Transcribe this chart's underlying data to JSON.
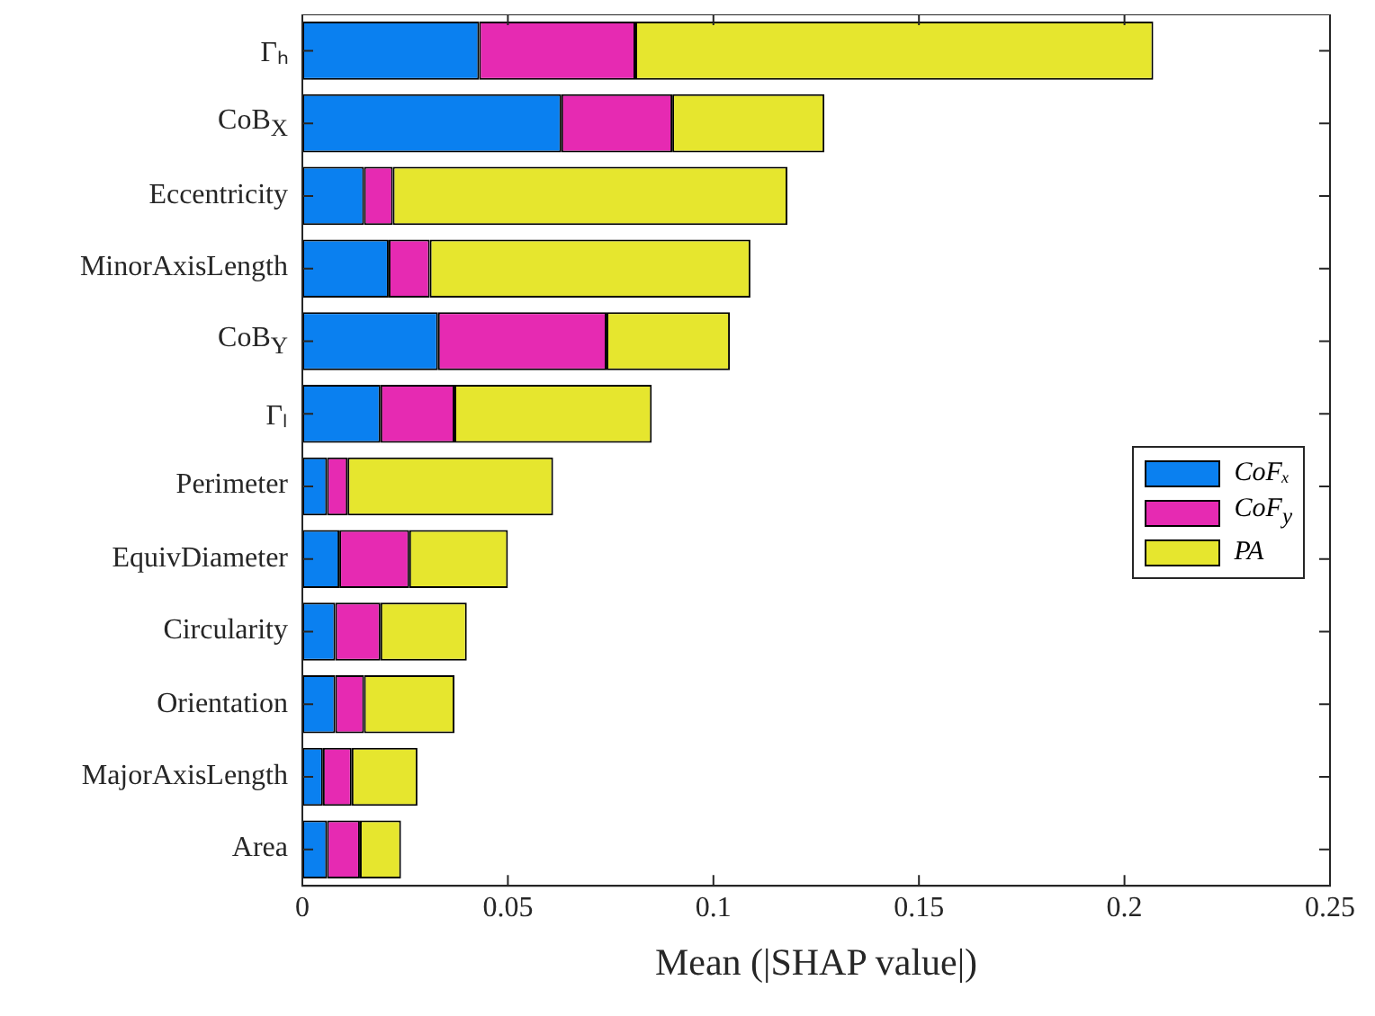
{
  "chart_data": {
    "type": "bar",
    "orientation": "horizontal",
    "stacked": true,
    "categories": [
      "Γₕ",
      "CoB$_{X}$",
      "Eccentricity",
      "MinorAxisLength",
      "CoB$_{Y}$",
      "Γₗ",
      "Perimeter",
      "EquivDiameter",
      "Circularity",
      "Orientation",
      "MajorAxisLength",
      "Area"
    ],
    "series": [
      {
        "name": "CoFₓ",
        "color": "#0a80f0",
        "values": [
          0.043,
          0.063,
          0.015,
          0.021,
          0.033,
          0.019,
          0.006,
          0.009,
          0.008,
          0.008,
          0.005,
          0.006
        ]
      },
      {
        "name": "CoF$_{y}$",
        "color": "#e62ab2",
        "values": [
          0.038,
          0.027,
          0.007,
          0.01,
          0.041,
          0.018,
          0.005,
          0.017,
          0.011,
          0.007,
          0.007,
          0.008
        ]
      },
      {
        "name": "PA",
        "color": "#e6e62e",
        "values": [
          0.126,
          0.037,
          0.096,
          0.078,
          0.03,
          0.048,
          0.05,
          0.024,
          0.021,
          0.022,
          0.016,
          0.01
        ]
      }
    ],
    "xlim": [
      0,
      0.25
    ],
    "xticks": [
      0,
      0.05,
      0.1,
      0.15,
      0.2,
      0.25
    ],
    "xlabel": "Mean (|SHAP value|)",
    "legend": "right"
  }
}
